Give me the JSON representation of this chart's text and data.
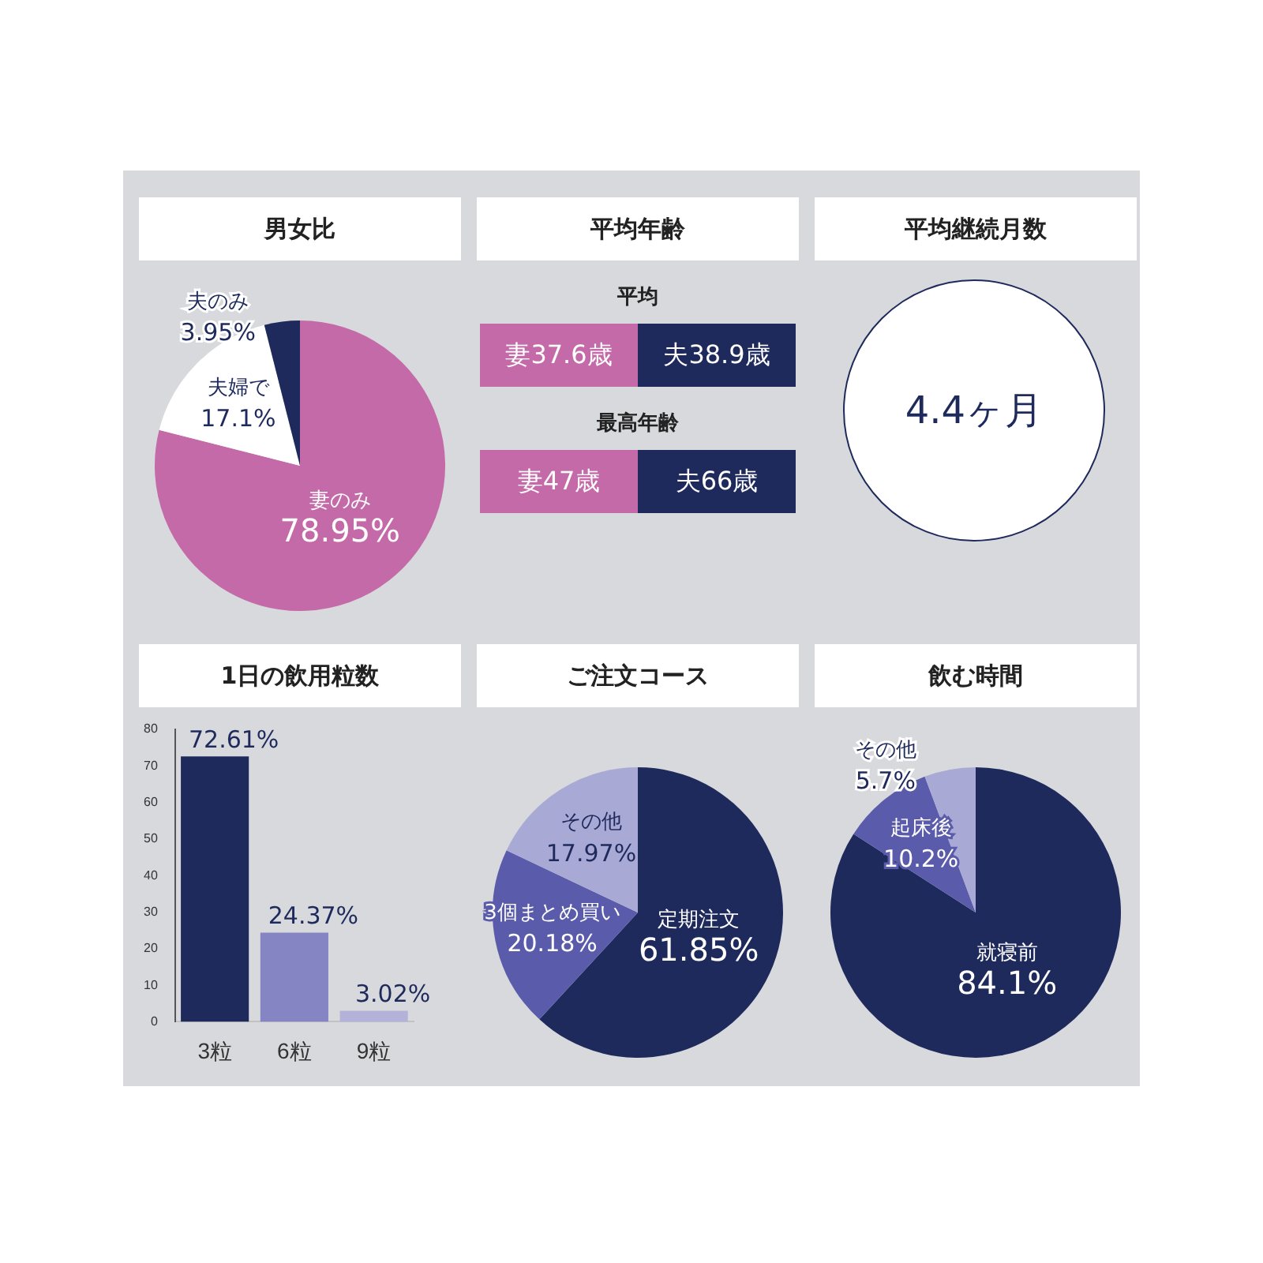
{
  "chart_data": [
    {
      "type": "pie",
      "title": "男女比",
      "categories": [
        "妻のみ",
        "夫婦で",
        "夫のみ"
      ],
      "values": [
        78.95,
        17.1,
        3.95
      ],
      "value_labels": [
        "78.95%",
        "17.1%",
        "3.95%"
      ],
      "colors": [
        "#c46aa8",
        "#ffffff",
        "#1f2a5c"
      ]
    },
    {
      "type": "other",
      "title": "平均年齢",
      "annotations": [
        "平均",
        "妻37.6歳",
        "夫38.9歳",
        "最高年齢",
        "妻47歳",
        "夫66歳"
      ]
    },
    {
      "type": "other",
      "title": "平均継続月数",
      "annotations": [
        "4.4ヶ月"
      ]
    },
    {
      "type": "bar",
      "title": "1日の飲用粒数",
      "categories": [
        "3粒",
        "6粒",
        "9粒"
      ],
      "values": [
        72.61,
        24.37,
        3.02
      ],
      "value_labels": [
        "72.61%",
        "24.37%",
        "3.02%"
      ],
      "colors": [
        "#1f2a5c",
        "#8585c4",
        "#b3b3d9"
      ],
      "ylim": [
        0,
        80
      ],
      "yticks": [
        0,
        10,
        20,
        30,
        40,
        50,
        60,
        70,
        80
      ]
    },
    {
      "type": "pie",
      "title": "ご注文コース",
      "categories": [
        "定期注文",
        "3個まとめ買い",
        "その他"
      ],
      "values": [
        61.85,
        20.18,
        17.97
      ],
      "value_labels": [
        "61.85%",
        "20.18%",
        "17.97%"
      ],
      "colors": [
        "#1f2a5c",
        "#5b5bab",
        "#a9a9d6"
      ]
    },
    {
      "type": "pie",
      "title": "飲む時間",
      "categories": [
        "就寝前",
        "起床後",
        "その他"
      ],
      "values": [
        84.1,
        10.2,
        5.7
      ],
      "value_labels": [
        "84.1%",
        "10.2%",
        "5.7%"
      ],
      "colors": [
        "#1f2a5c",
        "#5b5bab",
        "#a9a9d6"
      ]
    }
  ]
}
